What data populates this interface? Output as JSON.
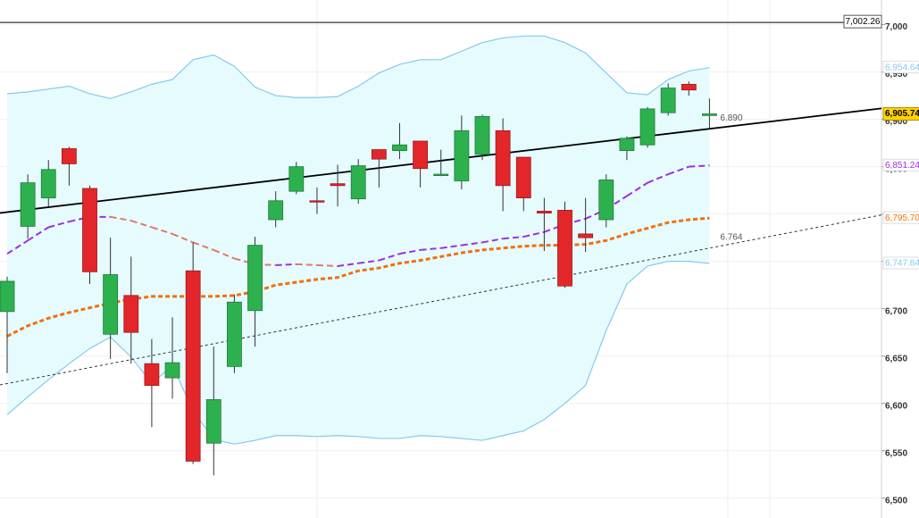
{
  "chart_data": {
    "type": "candlestick",
    "categories": [
      null,
      null,
      null,
      null,
      null,
      null,
      null,
      null,
      null,
      null,
      null,
      null,
      null,
      null,
      null,
      null,
      null,
      null,
      null,
      null,
      null,
      null,
      null,
      null,
      null,
      null,
      null,
      null,
      null,
      null,
      null,
      null,
      null,
      null,
      null
    ],
    "open": [
      6697,
      6787,
      6817,
      6869,
      6827,
      6673,
      6714,
      6642,
      6627,
      6740,
      6558,
      6639,
      6698,
      6794,
      6824,
      6814,
      6832,
      6816,
      6868,
      6867,
      6877,
      6841,
      6835,
      6863,
      6888,
      6860,
      6803,
      6804,
      6779,
      6794,
      6867,
      6873,
      6907,
      6937,
      6904
    ],
    "high": [
      6734,
      6842,
      6857,
      6871,
      6830,
      6775,
      6755,
      6668,
      6691,
      6770,
      6660,
      6715,
      6776,
      6824,
      6855,
      6828,
      6852,
      6858,
      6868,
      6896,
      6877,
      6868,
      6904,
      6905,
      6901,
      6860,
      6817,
      6813,
      6817,
      6842,
      6882,
      6913,
      6938,
      6940,
      6922
    ],
    "low": [
      6632,
      6774,
      6808,
      6830,
      6726,
      6647,
      6642,
      6575,
      6605,
      6536,
      6524,
      6632,
      6660,
      6786,
      6821,
      6800,
      6808,
      6811,
      6828,
      6858,
      6828,
      6840,
      6826,
      6857,
      6803,
      6803,
      6761,
      6722,
      6760,
      6786,
      6857,
      6870,
      6904,
      6925,
      6890
    ],
    "close": [
      6729,
      6833,
      6847,
      6853,
      6739,
      6736,
      6675,
      6619,
      6643,
      6539,
      6604,
      6707,
      6767,
      6814,
      6850,
      6813,
      6830,
      6851,
      6858,
      6873,
      6848,
      6842,
      6888,
      6903,
      6830,
      6817,
      6801,
      6724,
      6775,
      6836,
      6880,
      6911,
      6933,
      6931,
      6905.74
    ],
    "up_color": "#2db14f",
    "down_color": "#e3262a",
    "last_price": {
      "value": 6905.74,
      "label": "6,905.74"
    },
    "last_price_color": "#ffd400",
    "band_fill": "#e6fbfd",
    "series": [
      {
        "color": "#86c9ea",
        "dash": false,
        "values": [
          6927,
          6929,
          6932,
          6935,
          6927,
          6922,
          6929,
          6937,
          6942,
          6963,
          6968,
          6956,
          6934,
          6925,
          6923,
          6923,
          6924,
          6935,
          6949,
          6958,
          6963,
          6963,
          6972,
          6981,
          6986,
          6988,
          6988,
          6981,
          6970,
          6949,
          6928,
          6926,
          6942,
          6951,
          6954.64
        ],
        "value_labels": [
          null,
          null,
          null,
          null,
          null,
          null,
          null,
          null,
          null,
          null,
          null,
          null,
          null,
          null,
          null,
          null,
          null,
          null,
          null,
          null,
          null,
          null,
          null,
          null,
          null,
          null,
          null,
          null,
          null,
          null,
          null,
          null,
          null,
          null,
          "6,954.64"
        ]
      },
      {
        "color": "#86c9ea",
        "dash": false,
        "values": [
          6588,
          6607,
          6625,
          6642,
          6658,
          6670,
          6649,
          6621,
          6640,
          6592,
          6562,
          6557,
          6561,
          6566,
          6566,
          6565,
          6566,
          6565,
          6563,
          6563,
          6566,
          6565,
          6563,
          6561,
          6566,
          6571,
          6583,
          6600,
          6619,
          6677,
          6726,
          6745,
          6750,
          6750,
          6747.84
        ],
        "value_labels": [
          null,
          null,
          null,
          null,
          null,
          null,
          null,
          null,
          null,
          null,
          null,
          null,
          null,
          null,
          null,
          null,
          null,
          null,
          null,
          null,
          null,
          null,
          null,
          null,
          null,
          null,
          null,
          null,
          null,
          null,
          null,
          null,
          null,
          null,
          "6,747.84"
        ]
      },
      {
        "color": "#9b30e0",
        "falling_color": "#e07a6a",
        "dash": true,
        "values": [
          6758,
          6772,
          6786,
          6792,
          6797,
          6797,
          6793,
          6786,
          6779,
          6770,
          6762,
          6753,
          6747,
          6746,
          6747,
          6746,
          6745,
          6748,
          6751,
          6758,
          6762,
          6764,
          6767,
          6770,
          6774,
          6776,
          6781,
          6789,
          6795,
          6805,
          6819,
          6833,
          6842,
          6850,
          6851.24
        ],
        "value_labels": [
          null,
          null,
          null,
          null,
          null,
          null,
          null,
          null,
          null,
          null,
          null,
          null,
          null,
          null,
          null,
          null,
          null,
          null,
          null,
          null,
          null,
          null,
          null,
          null,
          null,
          null,
          null,
          null,
          null,
          null,
          null,
          null,
          null,
          null,
          "6,851.24"
        ]
      },
      {
        "color": "#f0700f",
        "dash": true,
        "values": [
          6671,
          6682,
          6690,
          6696,
          6701,
          6706,
          6710,
          6713,
          6713,
          6713,
          6713,
          6714,
          6718,
          6725,
          6728,
          6731,
          6733,
          6740,
          6743,
          6748,
          6751,
          6755,
          6759,
          6762,
          6764,
          6766,
          6767,
          6767,
          6768,
          6772,
          6779,
          6785,
          6791,
          6794,
          6795.7
        ],
        "value_labels": [
          null,
          null,
          null,
          null,
          null,
          null,
          null,
          null,
          null,
          null,
          null,
          null,
          null,
          null,
          null,
          null,
          null,
          null,
          null,
          null,
          null,
          null,
          null,
          null,
          null,
          null,
          null,
          null,
          null,
          null,
          null,
          null,
          null,
          null,
          "6,795.70"
        ]
      }
    ],
    "trendlines": [
      {
        "x": [
          0,
          34
        ],
        "values": [
          6802,
          6890
        ],
        "label": "6.890",
        "color": "#000000",
        "dash": false
      },
      {
        "x": [
          0,
          34
        ],
        "values": [
          6621,
          6764
        ],
        "label": "6.764",
        "color": "#333333",
        "dash": true
      }
    ],
    "hline": {
      "value": 7002.26,
      "label": "7,002.26"
    },
    "ylim": [
      6479,
      7026
    ],
    "yticks": [
      {
        "value": 6500,
        "label": "6,500"
      },
      {
        "value": 6550,
        "label": "6,550"
      },
      {
        "value": 6600,
        "label": "6,600"
      },
      {
        "value": 6650,
        "label": "6,650"
      },
      {
        "value": 6700,
        "label": "6,700"
      },
      {
        "value": 6750,
        "label": "6,750"
      },
      {
        "value": 6800,
        "label": "6,800"
      },
      {
        "value": 6850,
        "label": "6,850"
      },
      {
        "value": 6900,
        "label": "6,900"
      },
      {
        "value": 6950,
        "label": "6,950"
      },
      {
        "value": 7000,
        "label": "7,000"
      }
    ],
    "grid": true
  }
}
